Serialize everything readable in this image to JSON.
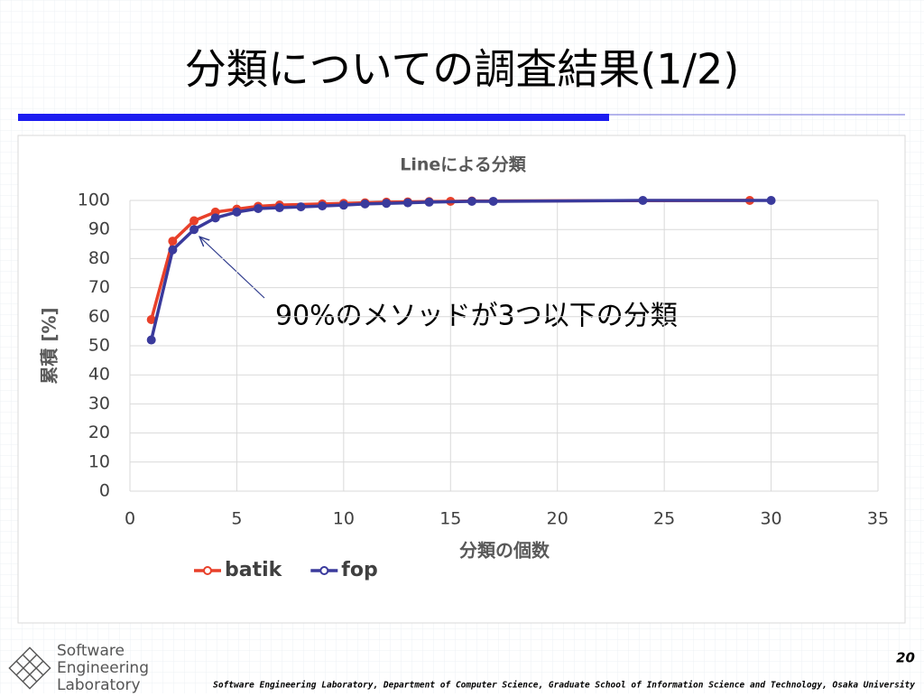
{
  "slide_title": "分類についての調査結果(1/2)",
  "chart_data": {
    "type": "line",
    "title": "Lineによる分類",
    "x_label": "分類の個数",
    "y_label": "累積 [%]",
    "xlim": [
      0,
      35
    ],
    "xticks": [
      0,
      5,
      10,
      15,
      20,
      25,
      30,
      35
    ],
    "ylim": [
      0,
      100
    ],
    "yticks": [
      0,
      10,
      20,
      30,
      40,
      50,
      60,
      70,
      80,
      90,
      100
    ],
    "grid": true,
    "legend": "bottom",
    "annotation": "90%のメソッドが3つ以下の分類",
    "series": [
      {
        "name": "batik",
        "color": "#e8402a",
        "x": [
          1,
          2,
          3,
          4,
          5,
          6,
          7,
          9,
          10,
          11,
          12,
          13,
          14,
          15,
          16,
          29
        ],
        "values": [
          59,
          86,
          93,
          96,
          97,
          98,
          98.4,
          98.8,
          99,
          99.2,
          99.4,
          99.5,
          99.6,
          99.7,
          99.8,
          100
        ]
      },
      {
        "name": "fop",
        "color": "#3a3a9c",
        "x": [
          1,
          2,
          3,
          4,
          5,
          6,
          7,
          8,
          9,
          10,
          11,
          12,
          13,
          14,
          16,
          17,
          24,
          30
        ],
        "values": [
          52,
          83,
          90,
          94,
          96,
          97.2,
          97.5,
          97.8,
          98.1,
          98.4,
          98.8,
          99,
          99.2,
          99.4,
          99.7,
          99.7,
          100,
          100
        ]
      }
    ]
  },
  "page_number": "20",
  "logo": [
    "Software",
    "Engineering",
    "Laboratory"
  ],
  "footer": "Software Engineering Laboratory, Department of Computer Science, Graduate School of Information Science and Technology, Osaka University"
}
